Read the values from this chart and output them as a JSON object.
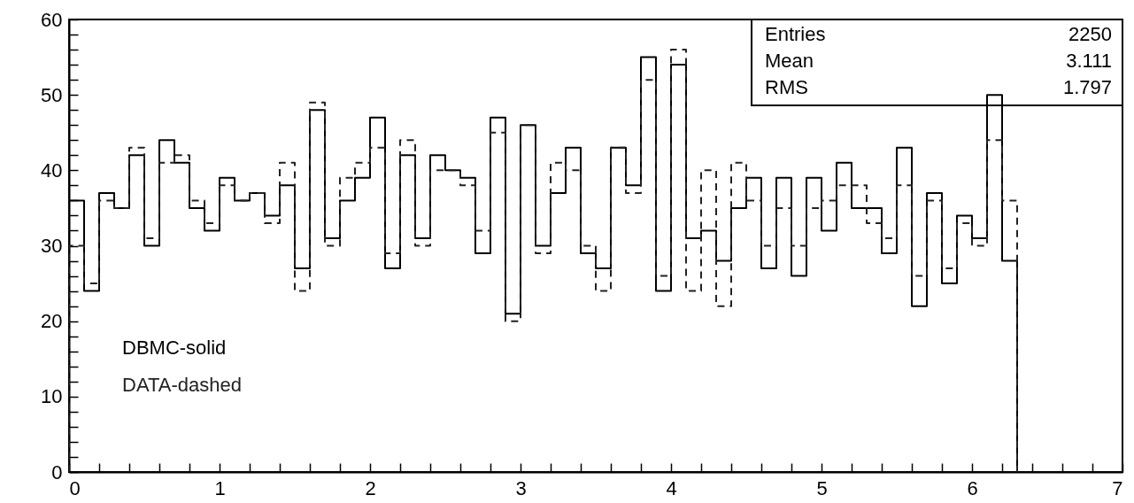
{
  "chart_data": {
    "type": "histogram",
    "bins": [
      0,
      0.1,
      0.2,
      0.3,
      0.4,
      0.5,
      0.6,
      0.7,
      0.8,
      0.9,
      1.0,
      1.1,
      1.2,
      1.3,
      1.4,
      1.5,
      1.6,
      1.7,
      1.8,
      1.9,
      2.0,
      2.1,
      2.2,
      2.3,
      2.4,
      2.5,
      2.6,
      2.7,
      2.8,
      2.9,
      3.0,
      3.1,
      3.2,
      3.3,
      3.4,
      3.5,
      3.6,
      3.7,
      3.8,
      3.9,
      4.0,
      4.1,
      4.2,
      4.3,
      4.4,
      4.5,
      4.6,
      4.7,
      4.8,
      4.9,
      5.0,
      5.1,
      5.2,
      5.3,
      5.4,
      5.5,
      5.6,
      5.7,
      5.8,
      5.9,
      6.0,
      6.1,
      6.2,
      6.3
    ],
    "series": [
      {
        "name": "DBMC-solid",
        "color": "#000000",
        "line_style": "solid",
        "values": [
          36,
          24,
          37,
          35,
          42,
          30,
          44,
          41,
          35,
          32,
          39,
          36,
          37,
          34,
          38,
          27,
          48,
          31,
          36,
          39,
          47,
          27,
          42,
          31,
          42,
          40,
          39,
          29,
          47,
          21,
          46,
          30,
          37,
          43,
          29,
          27,
          43,
          38,
          55,
          24,
          54,
          31,
          32,
          28,
          35,
          39,
          27,
          39,
          26,
          39,
          32,
          41,
          35,
          35,
          29,
          43,
          22,
          37,
          25,
          34,
          31,
          50,
          28
        ]
      },
      {
        "name": "DATA-dashed",
        "color": "#222222",
        "line_style": "dashed",
        "values": [
          30,
          25,
          36,
          35,
          43,
          31,
          41,
          42,
          36,
          33,
          38,
          36,
          37,
          33,
          41,
          24,
          49,
          30,
          39,
          41,
          43,
          29,
          44,
          30,
          40,
          40,
          38,
          32,
          45,
          20,
          46,
          29,
          41,
          40,
          30,
          24,
          43,
          37,
          52,
          26,
          56,
          24,
          40,
          22,
          41,
          36,
          30,
          35,
          30,
          35,
          36,
          38,
          38,
          33,
          31,
          38,
          26,
          36,
          27,
          33,
          30,
          44,
          36
        ]
      }
    ],
    "xlim": [
      0,
      7
    ],
    "xticks": [
      0,
      {
        "value": 0.2,
        "label": null
      },
      {
        "value": 0.4,
        "label": null
      },
      {
        "value": 0.6,
        "label": null
      },
      {
        "value": 0.8,
        "label": null
      },
      1,
      {
        "value": 1.2,
        "label": null
      },
      {
        "value": 1.4,
        "label": null
      },
      {
        "value": 1.6,
        "label": null
      },
      {
        "value": 1.8,
        "label": null
      },
      2,
      {
        "value": 2.2,
        "label": null
      },
      {
        "value": 2.4,
        "label": null
      },
      {
        "value": 2.6,
        "label": null
      },
      {
        "value": 2.8,
        "label": null
      },
      3,
      {
        "value": 3.2,
        "label": null
      },
      {
        "value": 3.4,
        "label": null
      },
      {
        "value": 3.6,
        "label": null
      },
      {
        "value": 3.8,
        "label": null
      },
      4,
      {
        "value": 4.2,
        "label": null
      },
      {
        "value": 4.4,
        "label": null
      },
      {
        "value": 4.6,
        "label": null
      },
      {
        "value": 4.8,
        "label": null
      },
      5,
      {
        "value": 5.2,
        "label": null
      },
      {
        "value": 5.4,
        "label": null
      },
      {
        "value": 5.6,
        "label": null
      },
      {
        "value": 5.8,
        "label": null
      },
      6,
      {
        "value": 6.2,
        "label": null
      },
      {
        "value": 6.4,
        "label": null
      },
      {
        "value": 6.6,
        "label": null
      },
      {
        "value": 6.8,
        "label": null
      },
      7
    ],
    "ylim": [
      0,
      60
    ],
    "yticks": [
      0,
      {
        "value": 2,
        "label": null
      },
      {
        "value": 4,
        "label": null
      },
      {
        "value": 6,
        "label": null
      },
      {
        "value": 8,
        "label": null
      },
      10,
      {
        "value": 12,
        "label": null
      },
      {
        "value": 14,
        "label": null
      },
      {
        "value": 16,
        "label": null
      },
      {
        "value": 18,
        "label": null
      },
      20,
      {
        "value": 22,
        "label": null
      },
      {
        "value": 24,
        "label": null
      },
      {
        "value": 26,
        "label": null
      },
      {
        "value": 28,
        "label": null
      },
      30,
      {
        "value": 32,
        "label": null
      },
      {
        "value": 34,
        "label": null
      },
      {
        "value": 36,
        "label": null
      },
      {
        "value": 38,
        "label": null
      },
      40,
      {
        "value": 42,
        "label": null
      },
      {
        "value": 44,
        "label": null
      },
      {
        "value": 46,
        "label": null
      },
      {
        "value": 48,
        "label": null
      },
      50,
      {
        "value": 52,
        "label": null
      },
      {
        "value": 54,
        "label": null
      },
      {
        "value": 56,
        "label": null
      },
      {
        "value": 58,
        "label": null
      },
      60
    ],
    "annotations": [
      "Entries",
      "2250",
      "Mean",
      "3.111",
      "RMS",
      "1.797"
    ]
  }
}
